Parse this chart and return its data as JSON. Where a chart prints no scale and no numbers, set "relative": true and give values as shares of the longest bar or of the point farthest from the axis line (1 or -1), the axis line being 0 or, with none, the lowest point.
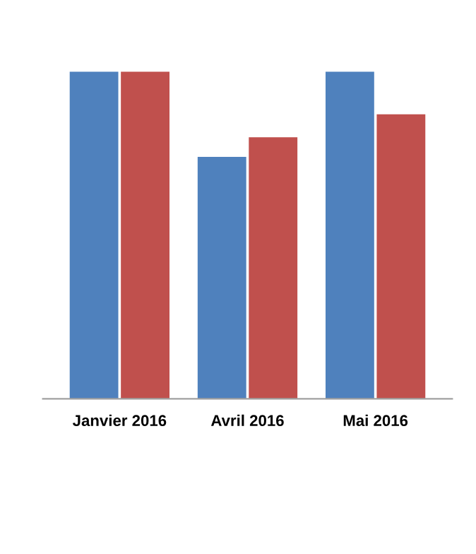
{
  "chart_data": {
    "type": "bar",
    "relative": true,
    "categories": [
      "Janvier 2016",
      "Avril 2016",
      "Mai 2016"
    ],
    "series": [
      {
        "color": "#4f81bd",
        "values": [
          1,
          0.74,
          1
        ]
      },
      {
        "color": "#c0504d",
        "values": [
          1,
          0.8,
          0.87
        ]
      }
    ],
    "grid": false,
    "legend": false
  }
}
